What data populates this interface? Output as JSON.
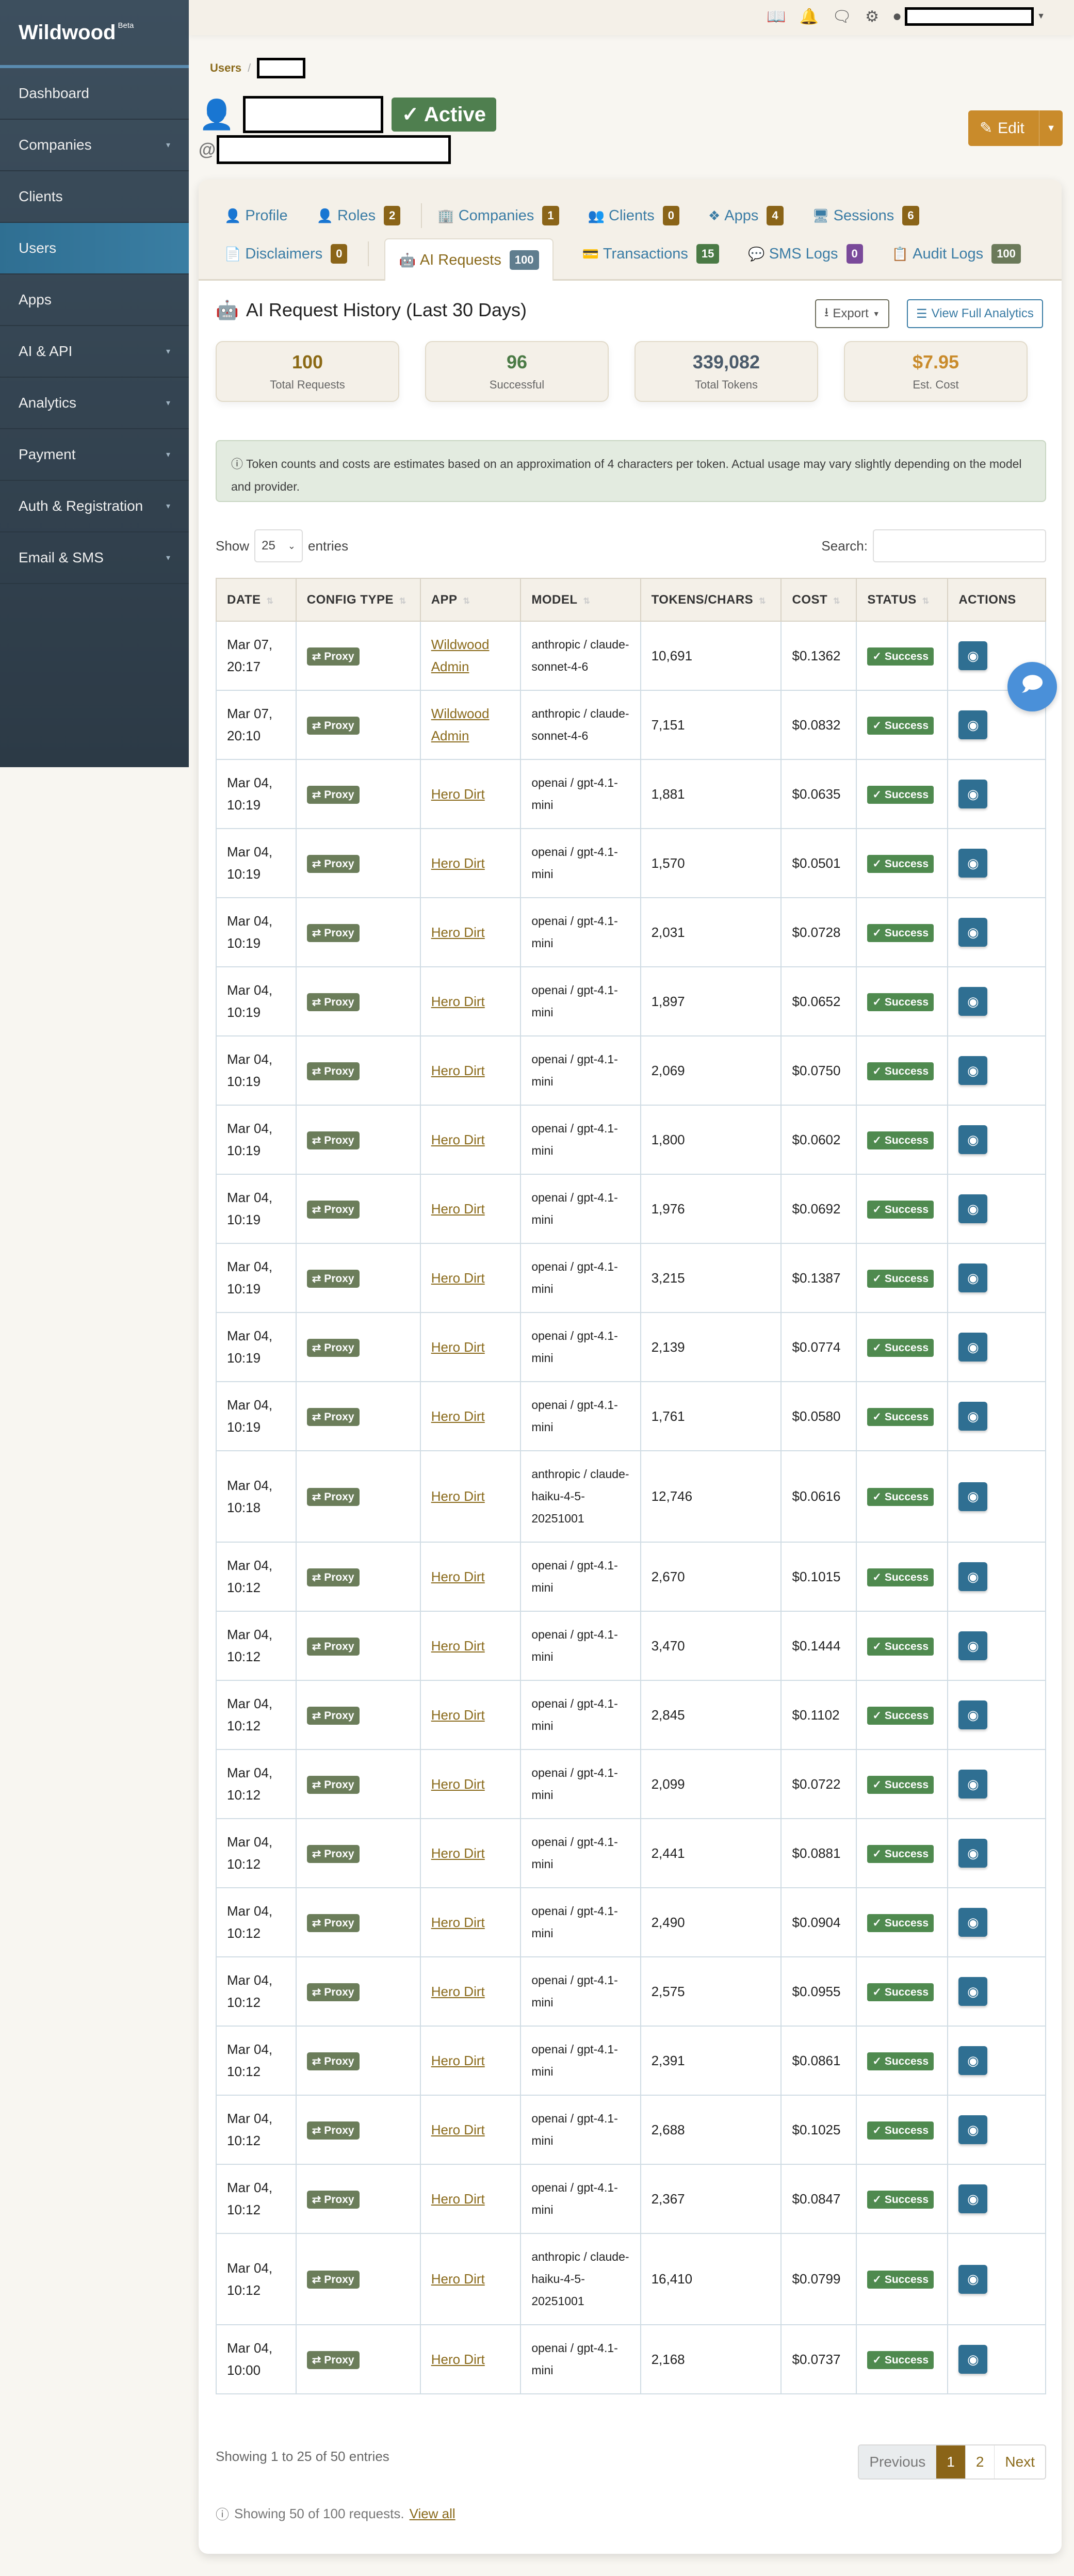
{
  "app": {
    "name": "Wildwood",
    "tag": "Beta"
  },
  "sidebar": {
    "items": [
      {
        "label": "Dashboard",
        "has_caret": false
      },
      {
        "label": "Companies",
        "has_caret": true
      },
      {
        "label": "Clients",
        "has_caret": false
      },
      {
        "label": "Users",
        "has_caret": false,
        "active": true
      },
      {
        "label": "Apps",
        "has_caret": false
      },
      {
        "label": "AI & API",
        "has_caret": true
      },
      {
        "label": "Analytics",
        "has_caret": true
      },
      {
        "label": "Payment",
        "has_caret": true
      },
      {
        "label": "Auth & Registration",
        "has_caret": true
      },
      {
        "label": "Email & SMS",
        "has_caret": true
      }
    ]
  },
  "breadcrumb": {
    "root": "Users",
    "separator": "/"
  },
  "user": {
    "status": "Active",
    "at": "@"
  },
  "actions": {
    "edit": "Edit"
  },
  "tabs": [
    {
      "label": "Profile",
      "icon": "user-icon"
    },
    {
      "label": "Roles",
      "count": "2",
      "color": "#8a6418",
      "icon": "user-tag-icon"
    },
    {
      "label": "Companies",
      "count": "1",
      "color": "#8a6418",
      "icon": "building-icon"
    },
    {
      "label": "Clients",
      "count": "0",
      "color": "#8a6418",
      "icon": "users-icon"
    },
    {
      "label": "Apps",
      "count": "4",
      "color": "#8a6418",
      "icon": "cubes-icon"
    },
    {
      "label": "Sessions",
      "count": "6",
      "color": "#8a6418",
      "icon": "desktop-icon"
    },
    {
      "label": "Disclaimers",
      "count": "0",
      "color": "#8a6418",
      "icon": "file-signature-icon"
    },
    {
      "label": "AI Requests",
      "count": "100",
      "color": "#5f7d8e",
      "icon": "robot-icon",
      "active": true
    },
    {
      "label": "Transactions",
      "count": "15",
      "color": "#4a7a45",
      "icon": "credit-card-icon"
    },
    {
      "label": "SMS Logs",
      "count": "0",
      "color": "#7a4a9a",
      "icon": "sms-icon"
    },
    {
      "label": "Audit Logs",
      "count": "100",
      "color": "#6b7a5a",
      "icon": "clipboard-list-icon"
    }
  ],
  "section": {
    "title": "AI Request History (Last 30 Days)",
    "export": "Export",
    "analytics": "View Full Analytics"
  },
  "stats": [
    {
      "value": "100",
      "label": "Total Requests",
      "color": "#8b6914"
    },
    {
      "value": "96",
      "label": "Successful",
      "color": "#4a7a45"
    },
    {
      "value": "339,082",
      "label": "Total Tokens",
      "color": "#4a5a6a"
    },
    {
      "value": "$7.95",
      "label": "Est. Cost",
      "color": "#c98b2b"
    }
  ],
  "alert": "Token counts and costs are estimates based on an approximation of 4 characters per token. Actual usage may vary slightly depending on the model and provider.",
  "table_controls": {
    "show": "Show",
    "page_size": "25",
    "entries": "entries",
    "search_label": "Search:",
    "search_value": ""
  },
  "table": {
    "columns": [
      "DATE",
      "CONFIG TYPE",
      "APP",
      "MODEL",
      "TOKENS/CHARS",
      "COST",
      "STATUS",
      "ACTIONS"
    ],
    "rows": [
      {
        "date": "Mar 07,",
        "time": "20:17",
        "type": "Proxy",
        "app": "Wildwood Admin",
        "model": "anthropic / claude-sonnet-4-6",
        "tokens": "10,691",
        "cost": "$0.1362",
        "status": "Success"
      },
      {
        "date": "Mar 07,",
        "time": "20:10",
        "type": "Proxy",
        "app": "Wildwood Admin",
        "model": "anthropic / claude-sonnet-4-6",
        "tokens": "7,151",
        "cost": "$0.0832",
        "status": "Success"
      },
      {
        "date": "Mar 04,",
        "time": "10:19",
        "type": "Proxy",
        "app": "Hero Dirt",
        "model": "openai / gpt-4.1-mini",
        "tokens": "1,881",
        "cost": "$0.0635",
        "status": "Success"
      },
      {
        "date": "Mar 04,",
        "time": "10:19",
        "type": "Proxy",
        "app": "Hero Dirt",
        "model": "openai / gpt-4.1-mini",
        "tokens": "1,570",
        "cost": "$0.0501",
        "status": "Success"
      },
      {
        "date": "Mar 04,",
        "time": "10:19",
        "type": "Proxy",
        "app": "Hero Dirt",
        "model": "openai / gpt-4.1-mini",
        "tokens": "2,031",
        "cost": "$0.0728",
        "status": "Success"
      },
      {
        "date": "Mar 04,",
        "time": "10:19",
        "type": "Proxy",
        "app": "Hero Dirt",
        "model": "openai / gpt-4.1-mini",
        "tokens": "1,897",
        "cost": "$0.0652",
        "status": "Success"
      },
      {
        "date": "Mar 04,",
        "time": "10:19",
        "type": "Proxy",
        "app": "Hero Dirt",
        "model": "openai / gpt-4.1-mini",
        "tokens": "2,069",
        "cost": "$0.0750",
        "status": "Success"
      },
      {
        "date": "Mar 04,",
        "time": "10:19",
        "type": "Proxy",
        "app": "Hero Dirt",
        "model": "openai / gpt-4.1-mini",
        "tokens": "1,800",
        "cost": "$0.0602",
        "status": "Success"
      },
      {
        "date": "Mar 04,",
        "time": "10:19",
        "type": "Proxy",
        "app": "Hero Dirt",
        "model": "openai / gpt-4.1-mini",
        "tokens": "1,976",
        "cost": "$0.0692",
        "status": "Success"
      },
      {
        "date": "Mar 04,",
        "time": "10:19",
        "type": "Proxy",
        "app": "Hero Dirt",
        "model": "openai / gpt-4.1-mini",
        "tokens": "3,215",
        "cost": "$0.1387",
        "status": "Success"
      },
      {
        "date": "Mar 04,",
        "time": "10:19",
        "type": "Proxy",
        "app": "Hero Dirt",
        "model": "openai / gpt-4.1-mini",
        "tokens": "2,139",
        "cost": "$0.0774",
        "status": "Success"
      },
      {
        "date": "Mar 04,",
        "time": "10:19",
        "type": "Proxy",
        "app": "Hero Dirt",
        "model": "openai / gpt-4.1-mini",
        "tokens": "1,761",
        "cost": "$0.0580",
        "status": "Success"
      },
      {
        "date": "Mar 04,",
        "time": "10:18",
        "type": "Proxy",
        "app": "Hero Dirt",
        "model": "anthropic / claude-haiku-4-5-20251001",
        "tokens": "12,746",
        "cost": "$0.0616",
        "status": "Success"
      },
      {
        "date": "Mar 04,",
        "time": "10:12",
        "type": "Proxy",
        "app": "Hero Dirt",
        "model": "openai / gpt-4.1-mini",
        "tokens": "2,670",
        "cost": "$0.1015",
        "status": "Success"
      },
      {
        "date": "Mar 04,",
        "time": "10:12",
        "type": "Proxy",
        "app": "Hero Dirt",
        "model": "openai / gpt-4.1-mini",
        "tokens": "3,470",
        "cost": "$0.1444",
        "status": "Success"
      },
      {
        "date": "Mar 04,",
        "time": "10:12",
        "type": "Proxy",
        "app": "Hero Dirt",
        "model": "openai / gpt-4.1-mini",
        "tokens": "2,845",
        "cost": "$0.1102",
        "status": "Success"
      },
      {
        "date": "Mar 04,",
        "time": "10:12",
        "type": "Proxy",
        "app": "Hero Dirt",
        "model": "openai / gpt-4.1-mini",
        "tokens": "2,099",
        "cost": "$0.0722",
        "status": "Success"
      },
      {
        "date": "Mar 04,",
        "time": "10:12",
        "type": "Proxy",
        "app": "Hero Dirt",
        "model": "openai / gpt-4.1-mini",
        "tokens": "2,441",
        "cost": "$0.0881",
        "status": "Success"
      },
      {
        "date": "Mar 04,",
        "time": "10:12",
        "type": "Proxy",
        "app": "Hero Dirt",
        "model": "openai / gpt-4.1-mini",
        "tokens": "2,490",
        "cost": "$0.0904",
        "status": "Success"
      },
      {
        "date": "Mar 04,",
        "time": "10:12",
        "type": "Proxy",
        "app": "Hero Dirt",
        "model": "openai / gpt-4.1-mini",
        "tokens": "2,575",
        "cost": "$0.0955",
        "status": "Success"
      },
      {
        "date": "Mar 04,",
        "time": "10:12",
        "type": "Proxy",
        "app": "Hero Dirt",
        "model": "openai / gpt-4.1-mini",
        "tokens": "2,391",
        "cost": "$0.0861",
        "status": "Success"
      },
      {
        "date": "Mar 04,",
        "time": "10:12",
        "type": "Proxy",
        "app": "Hero Dirt",
        "model": "openai / gpt-4.1-mini",
        "tokens": "2,688",
        "cost": "$0.1025",
        "status": "Success"
      },
      {
        "date": "Mar 04,",
        "time": "10:12",
        "type": "Proxy",
        "app": "Hero Dirt",
        "model": "openai / gpt-4.1-mini",
        "tokens": "2,367",
        "cost": "$0.0847",
        "status": "Success"
      },
      {
        "date": "Mar 04,",
        "time": "10:12",
        "type": "Proxy",
        "app": "Hero Dirt",
        "model": "anthropic / claude-haiku-4-5-20251001",
        "tokens": "16,410",
        "cost": "$0.0799",
        "status": "Success"
      },
      {
        "date": "Mar 04,",
        "time": "10:00",
        "type": "Proxy",
        "app": "Hero Dirt",
        "model": "openai / gpt-4.1-mini",
        "tokens": "2,168",
        "cost": "$0.0737",
        "status": "Success"
      }
    ]
  },
  "pagination": {
    "info": "Showing 1 to 25 of 50 entries",
    "previous": "Previous",
    "pages": [
      "1",
      "2"
    ],
    "current": "1",
    "next": "Next"
  },
  "footer_note": {
    "text": "Showing 50 of 100 requests.",
    "link": "View all"
  }
}
